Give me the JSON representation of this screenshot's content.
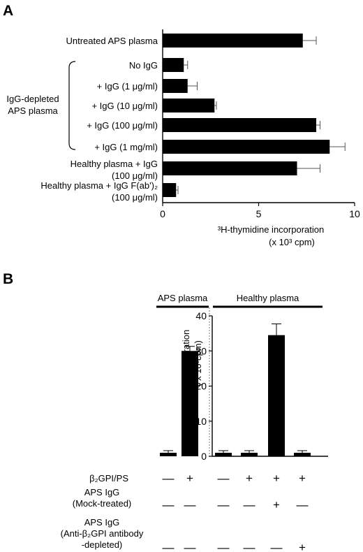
{
  "panels": {
    "a": "A",
    "b": "B"
  },
  "group_label": {
    "line1": "IgG-depleted",
    "line2": "APS plasma"
  },
  "chart_data": [
    {
      "type": "bar",
      "orientation": "horizontal",
      "categories": [
        [
          "Untreated APS plasma"
        ],
        [
          "No IgG"
        ],
        [
          "+ IgG (1 μg/ml)"
        ],
        [
          "+ IgG (10 μg/ml)"
        ],
        [
          "+ IgG (100 μg/ml)"
        ],
        [
          "+ IgG (1 mg/ml)"
        ],
        [
          "Healthy plasma + IgG",
          "(100 μg/ml)"
        ],
        [
          "Healthy plasma + IgG F(ab')₂",
          "(100 μg/ml)"
        ]
      ],
      "values": [
        7.3,
        1.1,
        1.3,
        2.7,
        8.0,
        8.7,
        7.0,
        0.7
      ],
      "errors": [
        0.7,
        0.2,
        0.5,
        0.1,
        0.2,
        0.8,
        1.2,
        0.1
      ],
      "xlim": [
        0,
        10
      ],
      "xticks": [
        0,
        5,
        10
      ],
      "xlabel": [
        "³H-thymidine incorporation",
        "(x 10³ cpm)"
      ],
      "bar_color": "#000000"
    },
    {
      "type": "bar",
      "values": [
        1.0,
        30.0,
        1.0,
        1.0,
        34.5,
        1.0
      ],
      "errors": [
        0.6,
        1.3,
        0.6,
        0.6,
        3.2,
        0.6
      ],
      "ylim": [
        0,
        40
      ],
      "yticks": [
        0,
        10,
        20,
        30,
        40
      ],
      "ylabel": [
        "³H-thymidine incorporation",
        "( x 10³cpm)"
      ],
      "groups": [
        {
          "name": "APS plasma",
          "bars": [
            0,
            1
          ]
        },
        {
          "name": "Healthy plasma",
          "bars": [
            2,
            3,
            4,
            5
          ]
        }
      ],
      "condition_rows": [
        {
          "label": [
            "β₂GPI/PS"
          ],
          "marks": [
            "—",
            "+",
            "—",
            "+",
            "+",
            "+"
          ]
        },
        {
          "label": [
            "APS  IgG",
            "(Mock-treated)"
          ],
          "marks": [
            "—",
            "—",
            "—",
            "—",
            "+",
            "—"
          ]
        },
        {
          "label": [
            "APS IgG",
            "(Anti-β₂GPI antibody",
            "-depleted)"
          ],
          "marks": [
            "—",
            "—",
            "—",
            "—",
            "—",
            "+"
          ]
        }
      ],
      "bar_color": "#000000"
    }
  ]
}
